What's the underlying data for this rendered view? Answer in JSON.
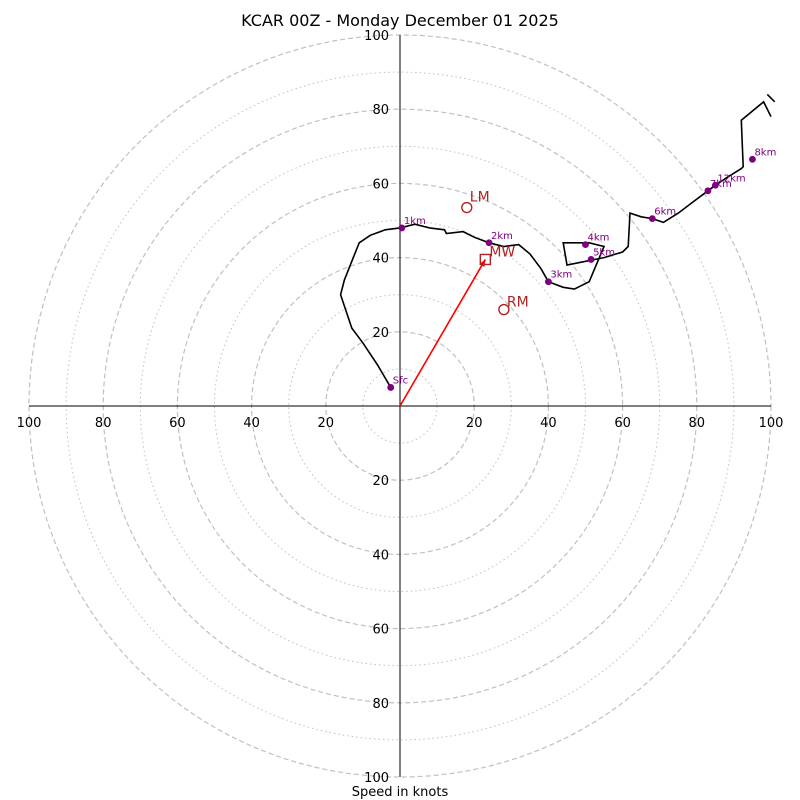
{
  "chart_data": {
    "type": "hodograph",
    "title": "KCAR 00Z - Monday December 01 2025",
    "xlabel": "Speed in knots",
    "xlim": [
      -100,
      100
    ],
    "ylim": [
      -100,
      100
    ],
    "ring_major": [
      20,
      40,
      60,
      80,
      100
    ],
    "ring_minor": [
      10,
      30,
      50,
      70,
      90
    ],
    "x_tick_labels": [
      "100",
      "80",
      "60",
      "40",
      "20",
      "20",
      "40",
      "60",
      "80",
      "100"
    ],
    "x_tick_values": [
      -100,
      -80,
      -60,
      -40,
      -20,
      20,
      40,
      60,
      80,
      100
    ],
    "y_tick_labels": [
      "100",
      "80",
      "60",
      "40",
      "20",
      "20",
      "40",
      "60",
      "80",
      "100"
    ],
    "y_tick_values": [
      100,
      80,
      60,
      40,
      20,
      -20,
      -40,
      -60,
      -80,
      -100
    ],
    "colors": {
      "trace": "#000000",
      "heights": "#800080",
      "motion": "#b22222",
      "vector": "#ff0000",
      "grid": "#c0c0c0"
    },
    "trace": [
      [
        -2.5,
        5
      ],
      [
        -6,
        11
      ],
      [
        -10,
        17
      ],
      [
        -13,
        21
      ],
      [
        -16,
        30
      ],
      [
        -15,
        34
      ],
      [
        -13,
        39
      ],
      [
        -11,
        44
      ],
      [
        -8,
        46
      ],
      [
        -4,
        47.5
      ],
      [
        0,
        48
      ],
      [
        4,
        49
      ],
      [
        8,
        48
      ],
      [
        12,
        47.5
      ],
      [
        12.5,
        46.5
      ],
      [
        17,
        47
      ],
      [
        20,
        45.5
      ],
      [
        24,
        44
      ],
      [
        28,
        43
      ],
      [
        32,
        43.5
      ],
      [
        35,
        41
      ],
      [
        38,
        37
      ],
      [
        40,
        33.5
      ],
      [
        44,
        32
      ],
      [
        47,
        31.5
      ],
      [
        51,
        33.5
      ],
      [
        55,
        43
      ],
      [
        51,
        44
      ],
      [
        44,
        44
      ],
      [
        45,
        38
      ],
      [
        50,
        39
      ],
      [
        55,
        40
      ],
      [
        60,
        41.5
      ],
      [
        61.5,
        43
      ],
      [
        62,
        52
      ],
      [
        65,
        51
      ],
      [
        68,
        50.5
      ],
      [
        71,
        49.5
      ],
      [
        75,
        52
      ],
      [
        79,
        55
      ],
      [
        83,
        58
      ],
      [
        85,
        59.5
      ],
      [
        88,
        61.5
      ],
      [
        92,
        64
      ],
      [
        92.5,
        64.5
      ],
      [
        92,
        77
      ],
      [
        98,
        82
      ],
      [
        100,
        78
      ]
    ],
    "trace_end": [
      [
        99,
        84
      ],
      [
        101,
        82
      ]
    ],
    "heights": [
      {
        "label": "Sfc",
        "u": -2.5,
        "v": 5
      },
      {
        "label": "1km",
        "u": 0.5,
        "v": 48
      },
      {
        "label": "2km",
        "u": 24,
        "v": 44
      },
      {
        "label": "3km",
        "u": 40,
        "v": 33.5
      },
      {
        "label": "4km",
        "u": 50,
        "v": 43.5
      },
      {
        "label": "5km",
        "u": 51.5,
        "v": 39.5
      },
      {
        "label": "6km",
        "u": 68,
        "v": 50.5
      },
      {
        "label": "7km",
        "u": 83,
        "v": 58
      },
      {
        "label": "12km",
        "u": 85,
        "v": 59.5
      },
      {
        "label": "8km",
        "u": 95,
        "v": 66.5
      }
    ],
    "storm_motion": {
      "LM": {
        "u": 18,
        "v": 53.5
      },
      "RM": {
        "u": 28,
        "v": 26
      },
      "MW": {
        "u": 23,
        "v": 39.5
      }
    }
  }
}
